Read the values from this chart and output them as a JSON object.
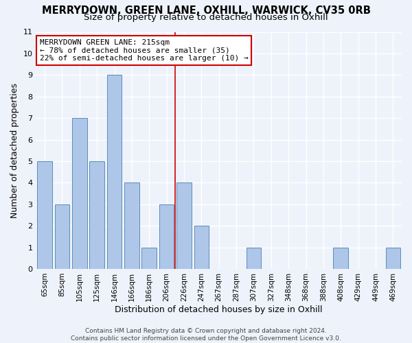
{
  "title": "MERRYDOWN, GREEN LANE, OXHILL, WARWICK, CV35 0RB",
  "subtitle": "Size of property relative to detached houses in Oxhill",
  "xlabel": "Distribution of detached houses by size in Oxhill",
  "ylabel": "Number of detached properties",
  "bar_labels": [
    "65sqm",
    "85sqm",
    "105sqm",
    "125sqm",
    "146sqm",
    "166sqm",
    "186sqm",
    "206sqm",
    "226sqm",
    "247sqm",
    "267sqm",
    "287sqm",
    "307sqm",
    "327sqm",
    "348sqm",
    "368sqm",
    "388sqm",
    "408sqm",
    "429sqm",
    "449sqm",
    "469sqm"
  ],
  "bar_values": [
    5,
    3,
    7,
    5,
    9,
    4,
    1,
    3,
    4,
    2,
    0,
    0,
    1,
    0,
    0,
    0,
    0,
    1,
    0,
    0,
    1
  ],
  "bar_color": "#aec6e8",
  "bar_edge_color": "#5b8db8",
  "ylim": [
    0,
    11
  ],
  "yticks": [
    0,
    1,
    2,
    3,
    4,
    5,
    6,
    7,
    8,
    9,
    10,
    11
  ],
  "vline_color": "#cc0000",
  "vline_x_index": 7.5,
  "annotation_text": "MERRYDOWN GREEN LANE: 215sqm\n← 78% of detached houses are smaller (35)\n22% of semi-detached houses are larger (10) →",
  "annotation_box_color": "#ffffff",
  "annotation_border_color": "#cc0000",
  "footer_line1": "Contains HM Land Registry data © Crown copyright and database right 2024.",
  "footer_line2": "Contains public sector information licensed under the Open Government Licence v3.0.",
  "bg_color": "#eef2fa",
  "grid_color": "#ffffff",
  "title_fontsize": 10.5,
  "subtitle_fontsize": 9.5,
  "tick_fontsize": 7.5,
  "ylabel_fontsize": 9,
  "xlabel_fontsize": 9,
  "annotation_fontsize": 8,
  "footer_fontsize": 6.5
}
